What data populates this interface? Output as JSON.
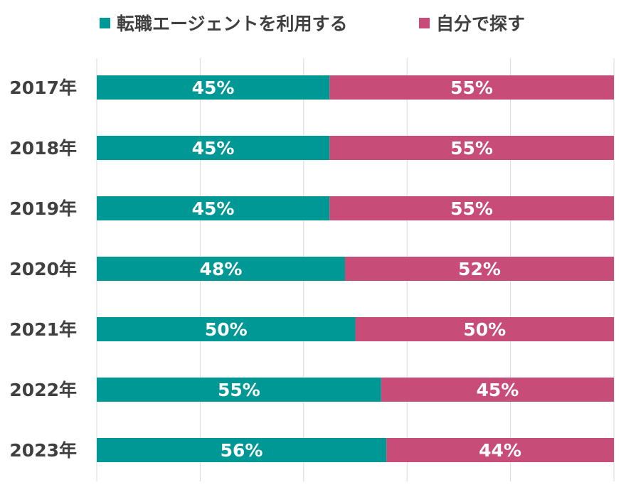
{
  "chart_data": {
    "type": "bar",
    "orientation": "horizontal",
    "stacked": "percent",
    "title": "",
    "categories": [
      "2017年",
      "2018年",
      "2019年",
      "2020年",
      "2021年",
      "2022年",
      "2023年"
    ],
    "series": [
      {
        "name": "転職エージェントを利用する",
        "color": "#009895",
        "values": [
          45,
          45,
          45,
          48,
          50,
          55,
          56
        ],
        "labels": [
          "45%",
          "45%",
          "45%",
          "48%",
          "50%",
          "55%",
          "56%"
        ]
      },
      {
        "name": "自分で探す",
        "color": "#C84C78",
        "values": [
          55,
          55,
          55,
          52,
          50,
          45,
          44
        ],
        "labels": [
          "55%",
          "55%",
          "55%",
          "52%",
          "50%",
          "45%",
          "44%"
        ]
      }
    ],
    "xlim": [
      0,
      100
    ],
    "grid": true,
    "legend_position": "top"
  }
}
